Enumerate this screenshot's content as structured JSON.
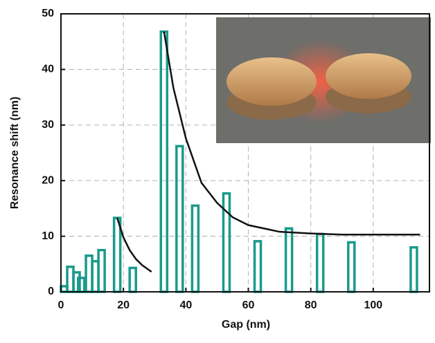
{
  "chart_data": {
    "type": "bar",
    "xlabel": "Gap (nm)",
    "ylabel": "Resonance shift (nm)",
    "x": [
      1,
      3,
      5,
      6.5,
      9,
      11,
      13,
      18,
      23,
      33,
      38,
      43,
      53,
      63,
      73,
      83,
      93,
      113
    ],
    "values": [
      1,
      4.5,
      3.5,
      2.5,
      6.5,
      5.5,
      7.5,
      13.3,
      4.3,
      46.8,
      26.2,
      15.5,
      17.7,
      9.1,
      11.4,
      10.4,
      8.9,
      8.0
    ],
    "color": "#1a9a8c",
    "fit_lines": [
      {
        "color": "#111111",
        "x": [
          18,
          20,
          22,
          24,
          26,
          28,
          29
        ],
        "values": [
          13.3,
          9.8,
          7.5,
          5.9,
          4.8,
          4.0,
          3.6
        ]
      },
      {
        "color": "#111111",
        "x": [
          33,
          36,
          40,
          45,
          50,
          55,
          60,
          70,
          80,
          90,
          115
        ],
        "values": [
          46.8,
          36.7,
          27.6,
          19.6,
          16.0,
          13.4,
          12.0,
          10.8,
          10.5,
          10.3,
          10.3
        ]
      }
    ],
    "xlim": [
      0,
      118
    ],
    "ylim": [
      0,
      50
    ],
    "xticks": [
      0,
      20,
      40,
      60,
      80,
      100
    ],
    "yticks": [
      0,
      10,
      20,
      30,
      40,
      50
    ],
    "grid": true
  }
}
